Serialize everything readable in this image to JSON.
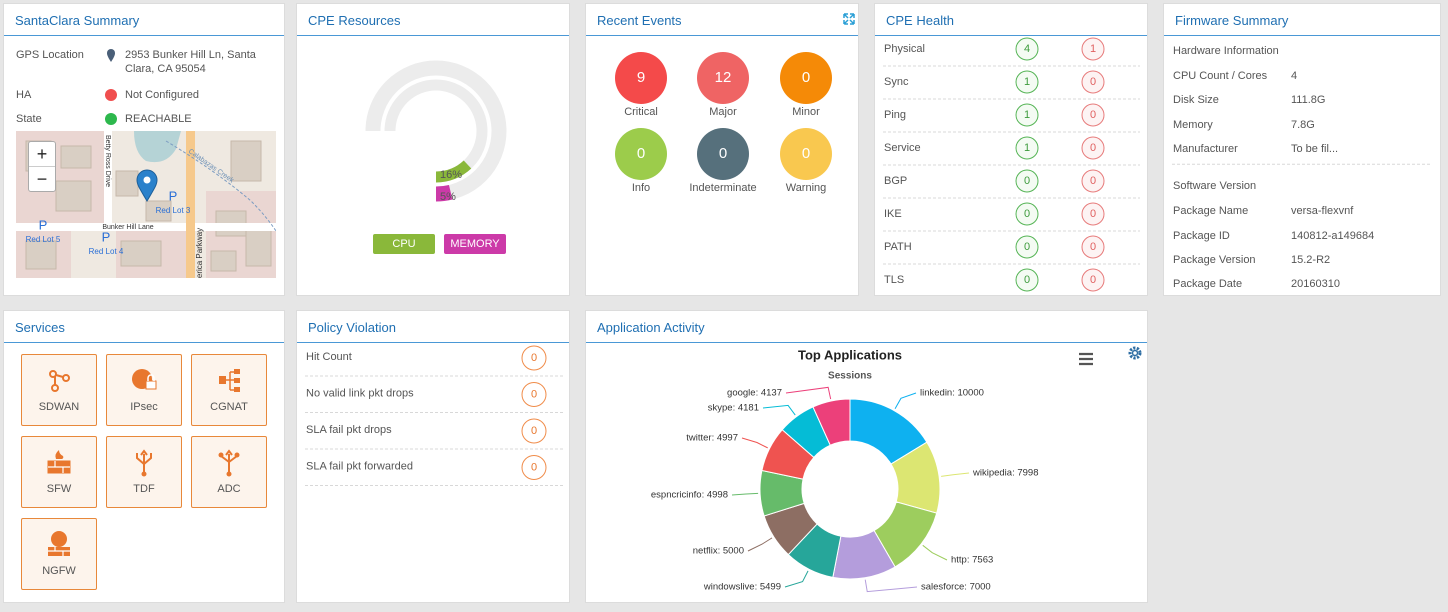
{
  "summary": {
    "title": "SantaClara Summary",
    "rows": [
      {
        "label": "GPS Location",
        "value": "2953 Bunker Hill Ln, Santa Clara, CA 95054"
      },
      {
        "label": "HA",
        "value": "Not Configured",
        "status_color": "#f04e4e"
      },
      {
        "label": "State",
        "value": "REACHABLE",
        "status_color": "#2db84d"
      }
    ],
    "map": {
      "zoom_in": "+",
      "zoom_out": "−",
      "streets": [
        "Betty Ross Drive",
        "Bunker Hill Lane",
        "erica Parkway",
        "Calabazas Creek"
      ],
      "parking": [
        {
          "sign": "P",
          "name": "Red Lot 3"
        },
        {
          "sign": "P",
          "name": "Red Lot 5"
        },
        {
          "sign": "P",
          "name": "Red Lot 4"
        }
      ]
    }
  },
  "resources": {
    "title": "CPE Resources",
    "lim": [
      0,
      100
    ],
    "metrics": [
      {
        "name": "CPU",
        "value": 16,
        "value_label": "16%",
        "color": "#8ab83a"
      },
      {
        "name": "MEMORY",
        "value": 5,
        "value_label": "5%",
        "color": "#cc3aa8"
      }
    ]
  },
  "events": {
    "title": "Recent Events",
    "items": [
      {
        "label": "Critical",
        "value": 9,
        "color": "#f44a4a"
      },
      {
        "label": "Major",
        "value": 12,
        "color": "#ef6464"
      },
      {
        "label": "Minor",
        "value": 0,
        "color": "#f58a07"
      },
      {
        "label": "Info",
        "value": 0,
        "color": "#9ccc4b"
      },
      {
        "label": "Indeterminate",
        "value": 0,
        "color": "#56707c"
      },
      {
        "label": "Warning",
        "value": 0,
        "color": "#f9c84f"
      }
    ]
  },
  "health": {
    "title": "CPE Health",
    "rows": [
      {
        "label": "Physical",
        "up": 4,
        "down": 1
      },
      {
        "label": "Sync",
        "up": 1,
        "down": 0
      },
      {
        "label": "Ping",
        "up": 1,
        "down": 0
      },
      {
        "label": "Service",
        "up": 1,
        "down": 0
      },
      {
        "label": "BGP",
        "up": 0,
        "down": 0
      },
      {
        "label": "IKE",
        "up": 0,
        "down": 0
      },
      {
        "label": "PATH",
        "up": 0,
        "down": 0
      },
      {
        "label": "TLS",
        "up": 0,
        "down": 0
      }
    ]
  },
  "firmware": {
    "title": "Firmware Summary",
    "sections": [
      {
        "heading": "Hardware Information",
        "rows": [
          {
            "label": "CPU Count / Cores",
            "value": 4
          },
          {
            "label": "Disk Size",
            "value": "111.8G"
          },
          {
            "label": "Memory",
            "value": "7.8G"
          },
          {
            "label": "Manufacturer",
            "value": "To be fil..."
          }
        ]
      },
      {
        "heading": "Software Version",
        "rows": [
          {
            "label": "Package Name",
            "value": "versa-flexvnf"
          },
          {
            "label": "Package ID",
            "value": "140812-a149684"
          },
          {
            "label": "Package Version",
            "value": "15.2-R2"
          },
          {
            "label": "Package Date",
            "value": "20160310"
          }
        ]
      }
    ]
  },
  "services": {
    "title": "Services",
    "items": [
      "SDWAN",
      "IPsec",
      "CGNAT",
      "SFW",
      "TDF",
      "ADC",
      "NGFW"
    ]
  },
  "policy": {
    "title": "Policy Violation",
    "rows": [
      {
        "label": "Hit Count",
        "value": 0
      },
      {
        "label": "No valid link pkt drops",
        "value": 0
      },
      {
        "label": "SLA fail pkt drops",
        "value": 0
      },
      {
        "label": "SLA fail pkt forwarded",
        "value": 0
      }
    ]
  },
  "app": {
    "title": "Application Activity",
    "chart": {
      "type": "pie",
      "title": "Top Applications",
      "subtitle": "Sessions",
      "categories": [
        "linkedin",
        "wikipedia",
        "http",
        "salesforce",
        "windowslive",
        "netflix",
        "espncricinfo",
        "twitter",
        "skype",
        "google"
      ],
      "values": [
        10000,
        7998,
        7563,
        7000,
        5499,
        5000,
        4998,
        4997,
        4181,
        4137
      ],
      "value_labels": [
        "linkedin: 10000",
        "wikipedia: 7998",
        "http: 7563",
        "salesforce: 7000",
        "windowslive: 5499",
        "netflix: 5000",
        "espncricinfo: 4998",
        "twitter: 4997",
        "skype: 4181",
        "google: 4137"
      ],
      "colors": [
        "#0eb1f0",
        "#dce672",
        "#9dcd5e",
        "#b49ddc",
        "#26a69a",
        "#8d6e63",
        "#66bb6a",
        "#ef5350",
        "#05bcd6",
        "#ec407a"
      ]
    }
  }
}
